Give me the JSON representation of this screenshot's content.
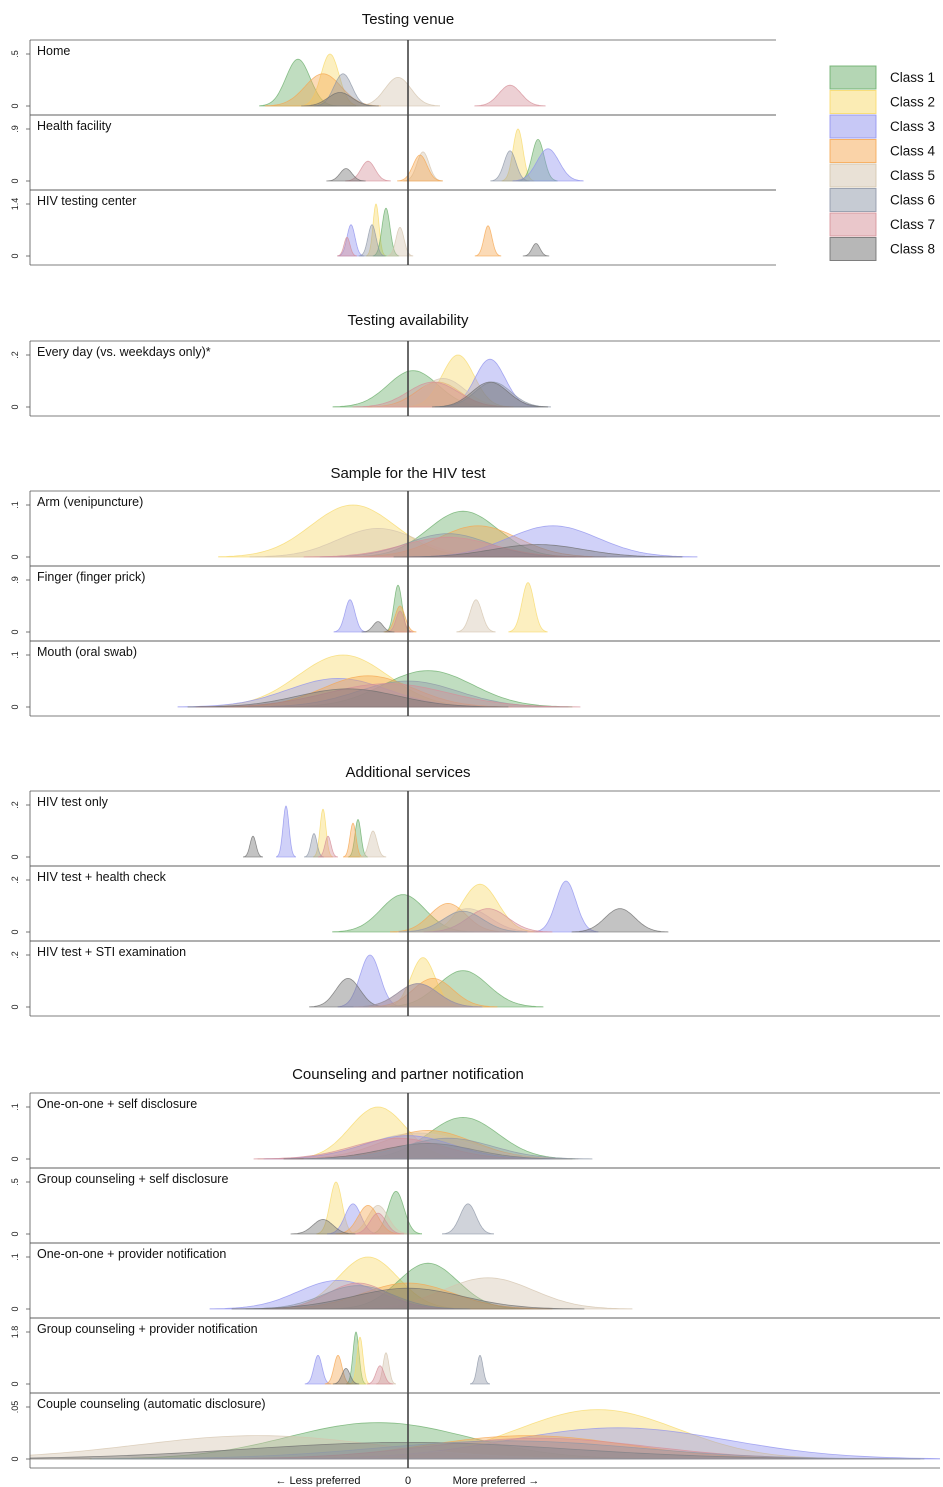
{
  "chart_data": {
    "type": "area",
    "x_axis": {
      "less_label": "← Less preferred",
      "zero_label": "0",
      "more_label": "More preferred →"
    },
    "legend": {
      "position": "top-right",
      "items": [
        {
          "label": "Class 1",
          "color": "#6aae6a"
        },
        {
          "label": "Class 2",
          "color": "#f7d96a"
        },
        {
          "label": "Class 3",
          "color": "#8f92ee"
        },
        {
          "label": "Class 4",
          "color": "#f5a752"
        },
        {
          "label": "Class 5",
          "color": "#d4c4ad"
        },
        {
          "label": "Class 6",
          "color": "#8e97a7"
        },
        {
          "label": "Class 7",
          "color": "#d58f98"
        },
        {
          "label": "Class 8",
          "color": "#6f6f6f"
        }
      ]
    },
    "sections": [
      {
        "title": "Testing venue",
        "panels": [
          {
            "label": "Home",
            "ytick_top": ".5",
            "ytick_bottom": "0",
            "series": [
              {
                "cls": 0,
                "c": -110,
                "w": 12,
                "h": 0.9
              },
              {
                "cls": 1,
                "c": -78,
                "w": 9,
                "h": 1.0
              },
              {
                "cls": 3,
                "c": -85,
                "w": 18,
                "h": 0.62
              },
              {
                "cls": 5,
                "c": -65,
                "w": 9,
                "h": 0.62
              },
              {
                "cls": 4,
                "c": -10,
                "w": 13,
                "h": 0.55
              },
              {
                "cls": 6,
                "c": 102,
                "w": 11,
                "h": 0.4
              },
              {
                "cls": 7,
                "c": -68,
                "w": 12,
                "h": 0.26
              }
            ]
          },
          {
            "label": "Health facility",
            "ytick_top": ".9",
            "ytick_bottom": "0",
            "series": [
              {
                "cls": 1,
                "c": 110,
                "w": 5,
                "h": 1.0
              },
              {
                "cls": 0,
                "c": 130,
                "w": 6,
                "h": 0.8
              },
              {
                "cls": 2,
                "c": 140,
                "w": 11,
                "h": 0.62
              },
              {
                "cls": 5,
                "c": 102,
                "w": 6,
                "h": 0.58
              },
              {
                "cls": 4,
                "c": 15,
                "w": 6,
                "h": 0.56
              },
              {
                "cls": 3,
                "c": 12,
                "w": 7,
                "h": 0.5
              },
              {
                "cls": 6,
                "c": -40,
                "w": 7,
                "h": 0.38
              },
              {
                "cls": 7,
                "c": -62,
                "w": 6,
                "h": 0.24
              }
            ]
          },
          {
            "label": "HIV testing center",
            "ytick_top": "1.4",
            "ytick_bottom": "0",
            "series": [
              {
                "cls": 1,
                "c": -32,
                "w": 3,
                "h": 1.0
              },
              {
                "cls": 0,
                "c": -22,
                "w": 4,
                "h": 0.92
              },
              {
                "cls": 4,
                "c": -8,
                "w": 4,
                "h": 0.55
              },
              {
                "cls": 2,
                "c": -57,
                "w": 4,
                "h": 0.6
              },
              {
                "cls": 5,
                "c": -36,
                "w": 4,
                "h": 0.6
              },
              {
                "cls": 3,
                "c": 80,
                "w": 4,
                "h": 0.58
              },
              {
                "cls": 6,
                "c": -61,
                "w": 3,
                "h": 0.36
              },
              {
                "cls": 7,
                "c": 128,
                "w": 4,
                "h": 0.24
              }
            ]
          }
        ]
      },
      {
        "title": "Testing availability",
        "panels": [
          {
            "label": "Every day (vs. weekdays only)*",
            "ytick_top": ".2",
            "ytick_bottom": "0",
            "series": [
              {
                "cls": 0,
                "c": 5,
                "w": 25,
                "h": 0.7
              },
              {
                "cls": 1,
                "c": 50,
                "w": 16,
                "h": 1.0
              },
              {
                "cls": 2,
                "c": 82,
                "w": 15,
                "h": 0.92
              },
              {
                "cls": 3,
                "c": 30,
                "w": 22,
                "h": 0.48
              },
              {
                "cls": 4,
                "c": 35,
                "w": 22,
                "h": 0.55
              },
              {
                "cls": 6,
                "c": 25,
                "w": 25,
                "h": 0.48
              },
              {
                "cls": 5,
                "c": 85,
                "w": 18,
                "h": 0.48
              },
              {
                "cls": 7,
                "c": 82,
                "w": 18,
                "h": 0.48
              }
            ]
          }
        ]
      },
      {
        "title": "Sample for the HIV test",
        "panels": [
          {
            "label": "Arm (venipuncture)",
            "ytick_top": ".1",
            "ytick_bottom": "0",
            "series": [
              {
                "cls": 1,
                "c": -55,
                "w": 42,
                "h": 1.0
              },
              {
                "cls": 0,
                "c": 55,
                "w": 35,
                "h": 0.88
              },
              {
                "cls": 4,
                "c": -30,
                "w": 40,
                "h": 0.55
              },
              {
                "cls": 3,
                "c": 70,
                "w": 40,
                "h": 0.6
              },
              {
                "cls": 2,
                "c": 145,
                "w": 45,
                "h": 0.6
              },
              {
                "cls": 5,
                "c": 40,
                "w": 40,
                "h": 0.45
              },
              {
                "cls": 6,
                "c": 40,
                "w": 45,
                "h": 0.38
              },
              {
                "cls": 7,
                "c": 130,
                "w": 45,
                "h": 0.24
              }
            ]
          },
          {
            "label": "Finger (finger prick)",
            "ytick_top": ".9",
            "ytick_bottom": "0",
            "series": [
              {
                "cls": 1,
                "c": 120,
                "w": 6,
                "h": 0.95
              },
              {
                "cls": 4,
                "c": 68,
                "w": 6,
                "h": 0.62
              },
              {
                "cls": 2,
                "c": -58,
                "w": 5,
                "h": 0.62
              },
              {
                "cls": 0,
                "c": -10,
                "w": 4,
                "h": 0.9
              },
              {
                "cls": 3,
                "c": -8,
                "w": 5,
                "h": 0.5
              },
              {
                "cls": 6,
                "c": -8,
                "w": 4,
                "h": 0.4
              },
              {
                "cls": 7,
                "c": -30,
                "w": 5,
                "h": 0.2
              }
            ]
          },
          {
            "label": "Mouth (oral swab)",
            "ytick_top": ".1",
            "ytick_bottom": "0",
            "series": [
              {
                "cls": 1,
                "c": -65,
                "w": 45,
                "h": 1.0
              },
              {
                "cls": 0,
                "c": 20,
                "w": 45,
                "h": 0.7
              },
              {
                "cls": 2,
                "c": -70,
                "w": 50,
                "h": 0.55
              },
              {
                "cls": 3,
                "c": -40,
                "w": 45,
                "h": 0.6
              },
              {
                "cls": 5,
                "c": 0,
                "w": 50,
                "h": 0.5
              },
              {
                "cls": 6,
                "c": -20,
                "w": 60,
                "h": 0.45
              },
              {
                "cls": 7,
                "c": -60,
                "w": 50,
                "h": 0.35
              }
            ]
          }
        ]
      },
      {
        "title": "Additional services",
        "panels": [
          {
            "label": "HIV test only",
            "ytick_top": ".2",
            "ytick_bottom": "0",
            "series": [
              {
                "cls": 7,
                "c": -155,
                "w": 3,
                "h": 0.4
              },
              {
                "cls": 2,
                "c": -122,
                "w": 3,
                "h": 0.98
              },
              {
                "cls": 1,
                "c": -85,
                "w": 3,
                "h": 0.92
              },
              {
                "cls": 5,
                "c": -94,
                "w": 3,
                "h": 0.45
              },
              {
                "cls": 6,
                "c": -80,
                "w": 3,
                "h": 0.4
              },
              {
                "cls": 0,
                "c": -50,
                "w": 3,
                "h": 0.72
              },
              {
                "cls": 3,
                "c": -55,
                "w": 3,
                "h": 0.65
              },
              {
                "cls": 4,
                "c": -35,
                "w": 4,
                "h": 0.5
              }
            ]
          },
          {
            "label": "HIV test + health check",
            "ytick_top": ".2",
            "ytick_bottom": "0",
            "series": [
              {
                "cls": 0,
                "c": -5,
                "w": 22,
                "h": 0.72
              },
              {
                "cls": 1,
                "c": 72,
                "w": 18,
                "h": 0.92
              },
              {
                "cls": 2,
                "c": 158,
                "w": 10,
                "h": 0.98
              },
              {
                "cls": 7,
                "c": 212,
                "w": 15,
                "h": 0.45
              },
              {
                "cls": 3,
                "c": 40,
                "w": 18,
                "h": 0.55
              },
              {
                "cls": 4,
                "c": 60,
                "w": 22,
                "h": 0.45
              },
              {
                "cls": 6,
                "c": 80,
                "w": 20,
                "h": 0.45
              },
              {
                "cls": 5,
                "c": 55,
                "w": 20,
                "h": 0.4
              }
            ]
          },
          {
            "label": "HIV test + STI examination",
            "ytick_top": ".2",
            "ytick_bottom": "0",
            "series": [
              {
                "cls": 2,
                "c": -38,
                "w": 10,
                "h": 1.0
              },
              {
                "cls": 0,
                "c": 55,
                "w": 25,
                "h": 0.7
              },
              {
                "cls": 1,
                "c": 15,
                "w": 12,
                "h": 0.95
              },
              {
                "cls": 7,
                "c": -60,
                "w": 12,
                "h": 0.55
              },
              {
                "cls": 3,
                "c": 25,
                "w": 20,
                "h": 0.55
              },
              {
                "cls": 6,
                "c": 10,
                "w": 20,
                "h": 0.45
              },
              {
                "cls": 5,
                "c": 10,
                "w": 20,
                "h": 0.45
              }
            ]
          }
        ]
      },
      {
        "title": "Counseling and partner notification",
        "panels": [
          {
            "label": "One-on-one + self disclosure",
            "ytick_top": ".1",
            "ytick_bottom": "0",
            "series": [
              {
                "cls": 1,
                "c": -30,
                "w": 28,
                "h": 1.0
              },
              {
                "cls": 0,
                "c": 55,
                "w": 35,
                "h": 0.8
              },
              {
                "cls": 3,
                "c": 20,
                "w": 45,
                "h": 0.55
              },
              {
                "cls": 4,
                "c": 10,
                "w": 50,
                "h": 0.5
              },
              {
                "cls": 2,
                "c": 0,
                "w": 45,
                "h": 0.45
              },
              {
                "cls": 6,
                "c": -10,
                "w": 45,
                "h": 0.4
              },
              {
                "cls": 7,
                "c": 20,
                "w": 45,
                "h": 0.3
              },
              {
                "cls": 5,
                "c": 40,
                "w": 45,
                "h": 0.4
              }
            ]
          },
          {
            "label": "Group counseling + self disclosure",
            "ytick_top": ".5",
            "ytick_bottom": "0",
            "series": [
              {
                "cls": 1,
                "c": -72,
                "w": 6,
                "h": 1.0
              },
              {
                "cls": 0,
                "c": -12,
                "w": 8,
                "h": 0.82
              },
              {
                "cls": 2,
                "c": -55,
                "w": 8,
                "h": 0.58
              },
              {
                "cls": 4,
                "c": -30,
                "w": 10,
                "h": 0.55
              },
              {
                "cls": 3,
                "c": -40,
                "w": 10,
                "h": 0.55
              },
              {
                "cls": 5,
                "c": 60,
                "w": 8,
                "h": 0.58
              },
              {
                "cls": 6,
                "c": -30,
                "w": 8,
                "h": 0.4
              },
              {
                "cls": 7,
                "c": -85,
                "w": 10,
                "h": 0.28
              }
            ]
          },
          {
            "label": "One-on-one + provider notification",
            "ytick_top": ".1",
            "ytick_bottom": "0",
            "series": [
              {
                "cls": 1,
                "c": -40,
                "w": 30,
                "h": 1.0
              },
              {
                "cls": 0,
                "c": 20,
                "w": 30,
                "h": 0.88
              },
              {
                "cls": 4,
                "c": 80,
                "w": 45,
                "h": 0.6
              },
              {
                "cls": 2,
                "c": -70,
                "w": 40,
                "h": 0.55
              },
              {
                "cls": 3,
                "c": 0,
                "w": 45,
                "h": 0.5
              },
              {
                "cls": 6,
                "c": -50,
                "w": 30,
                "h": 0.5
              },
              {
                "cls": 5,
                "c": -50,
                "w": 35,
                "h": 0.45
              },
              {
                "cls": 7,
                "c": 0,
                "w": 55,
                "h": 0.4
              }
            ]
          },
          {
            "label": "Group counseling + provider notification",
            "ytick_top": "1.8",
            "ytick_bottom": "0",
            "series": [
              {
                "cls": 0,
                "c": -52,
                "w": 3,
                "h": 1.0
              },
              {
                "cls": 1,
                "c": -48,
                "w": 3,
                "h": 0.9
              },
              {
                "cls": 4,
                "c": -22,
                "w": 3,
                "h": 0.6
              },
              {
                "cls": 2,
                "c": -90,
                "w": 4,
                "h": 0.55
              },
              {
                "cls": 3,
                "c": -70,
                "w": 4,
                "h": 0.55
              },
              {
                "cls": 5,
                "c": 72,
                "w": 3,
                "h": 0.55
              },
              {
                "cls": 6,
                "c": -28,
                "w": 4,
                "h": 0.35
              },
              {
                "cls": 7,
                "c": -62,
                "w": 4,
                "h": 0.3
              }
            ]
          },
          {
            "label": "Couple counseling (automatic disclosure)",
            "ytick_top": ".05",
            "ytick_bottom": "0",
            "series": [
              {
                "cls": 0,
                "c": -30,
                "w": 90,
                "h": 0.7
              },
              {
                "cls": 1,
                "c": 190,
                "w": 80,
                "h": 0.95
              },
              {
                "cls": 2,
                "c": 210,
                "w": 110,
                "h": 0.6
              },
              {
                "cls": 3,
                "c": 120,
                "w": 100,
                "h": 0.45
              },
              {
                "cls": 4,
                "c": -150,
                "w": 120,
                "h": 0.45
              },
              {
                "cls": 6,
                "c": 130,
                "w": 110,
                "h": 0.4
              },
              {
                "cls": 7,
                "c": 0,
                "w": 160,
                "h": 0.32
              },
              {
                "cls": 5,
                "c": 100,
                "w": 130,
                "h": 0.35
              }
            ]
          }
        ]
      }
    ]
  }
}
